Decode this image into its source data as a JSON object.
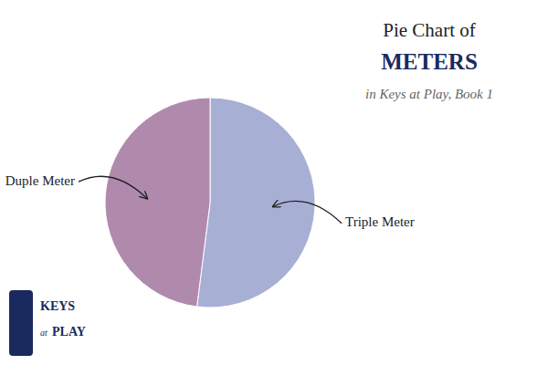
{
  "chart_data": {
    "type": "pie",
    "title": "Pie Chart of\nMETERS",
    "subtitle": "in Keys at Play, Book 1",
    "categories": [
      "Triple Meter",
      "Duple Meter"
    ],
    "values": [
      52,
      48
    ],
    "colors": [
      "#a8afd4",
      "#b08aad"
    ],
    "annotations": [
      "KEYS",
      "at",
      "PLAY"
    ]
  }
}
